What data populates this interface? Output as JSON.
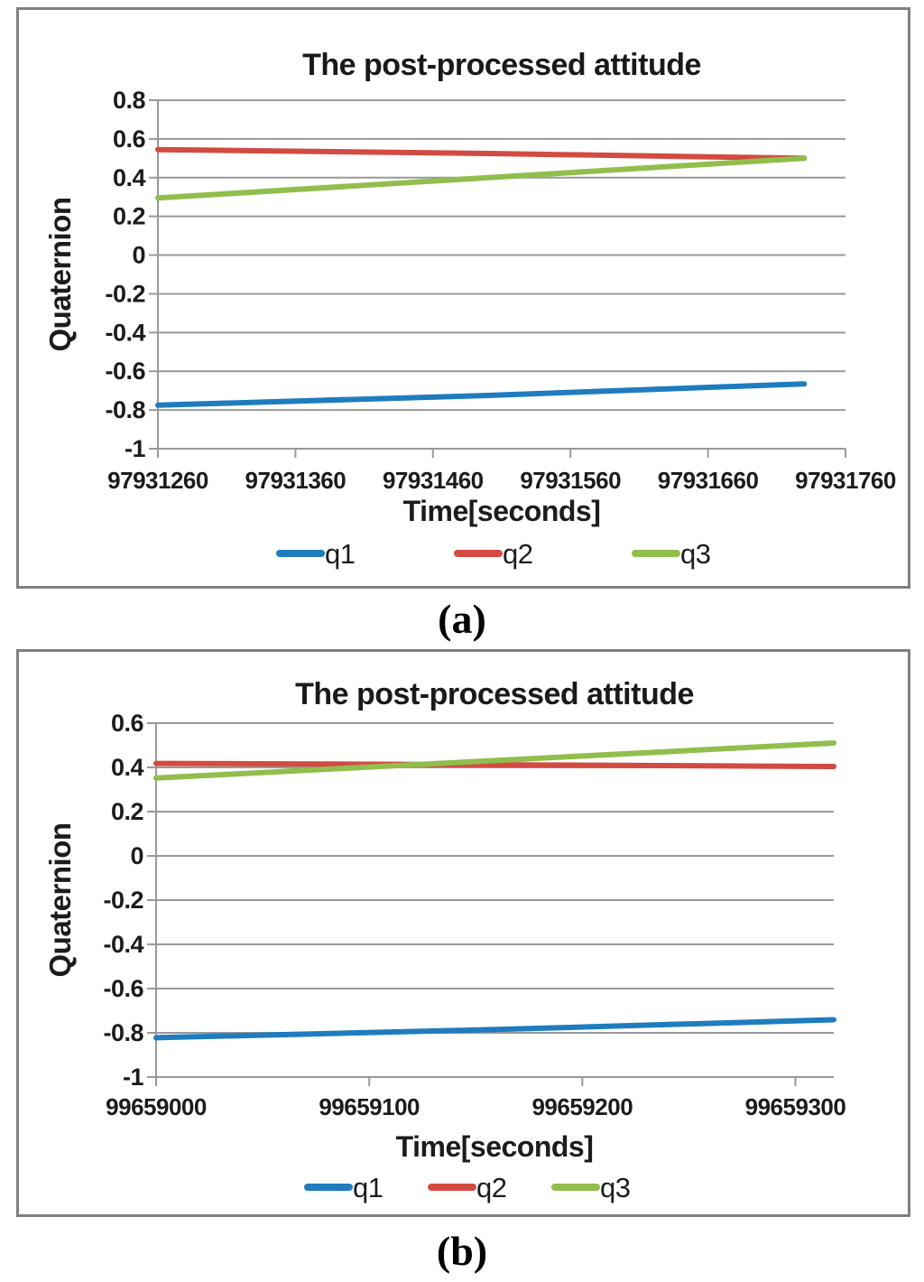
{
  "captions": {
    "a": "(a)",
    "b": "(b)"
  },
  "colors": {
    "q1": "#1F7CBE",
    "q2": "#D24B42",
    "q3": "#91BE4C",
    "grid": "#999999",
    "panel_border": "#7F7F7F",
    "text": "#1C1C1C"
  },
  "chart_data": [
    {
      "id": "a",
      "type": "line",
      "title": "The post-processed attitude",
      "xlabel": "Time[seconds]",
      "ylabel": "Quaternion",
      "xlim": [
        97931260,
        97931760
      ],
      "ylim": [
        -1,
        0.8
      ],
      "grid": "horizontal",
      "legend_position": "bottom",
      "xticks": [
        97931260,
        97931360,
        97931460,
        97931560,
        97931660,
        97931760
      ],
      "xtick_labels": [
        "97931260",
        "97931360",
        "97931460",
        "97931560",
        "97931660",
        "97931760"
      ],
      "yticks": [
        0.8,
        0.6,
        0.4,
        0.2,
        0,
        -0.2,
        -0.4,
        -0.6,
        -0.8,
        -1
      ],
      "ytick_labels": [
        "0.8",
        "0.6",
        "0.4",
        "0.2",
        "0",
        "-0.2",
        "-0.4",
        "-0.6",
        "-0.8",
        "-1"
      ],
      "series": [
        {
          "name": "q1",
          "color": "#1F7CBE",
          "points": [
            [
              97931260,
              -0.775
            ],
            [
              97931500,
              -0.725
            ],
            [
              97931730,
              -0.665
            ]
          ]
        },
        {
          "name": "q2",
          "color": "#D24B42",
          "points": [
            [
              97931260,
              0.545
            ],
            [
              97931500,
              0.525
            ],
            [
              97931730,
              0.5
            ]
          ]
        },
        {
          "name": "q3",
          "color": "#91BE4C",
          "points": [
            [
              97931260,
              0.295
            ],
            [
              97931500,
              0.4
            ],
            [
              97931730,
              0.5
            ]
          ]
        }
      ]
    },
    {
      "id": "b",
      "type": "line",
      "title": "The post-processed attitude",
      "xlabel": "Time[seconds]",
      "ylabel": "Quaternion",
      "xlim": [
        99659000,
        99659318
      ],
      "ylim": [
        -1,
        0.6
      ],
      "grid": "horizontal",
      "legend_position": "bottom",
      "xticks": [
        99659000,
        99659100,
        99659200,
        99659300
      ],
      "xtick_labels": [
        "99659000",
        "99659100",
        "99659200",
        "99659300"
      ],
      "yticks": [
        0.6,
        0.4,
        0.2,
        0,
        -0.2,
        -0.4,
        -0.6,
        -0.8,
        -1
      ],
      "ytick_labels": [
        "0.6",
        "0.4",
        "0.2",
        "0",
        "-0.2",
        "-0.4",
        "-0.6",
        "-0.8",
        "-1"
      ],
      "series": [
        {
          "name": "q1",
          "color": "#1F7CBE",
          "points": [
            [
              99659000,
              -0.822
            ],
            [
              99659160,
              -0.785
            ],
            [
              99659318,
              -0.741
            ]
          ]
        },
        {
          "name": "q2",
          "color": "#D24B42",
          "points": [
            [
              99659000,
              0.418
            ],
            [
              99659160,
              0.412
            ],
            [
              99659318,
              0.404
            ]
          ]
        },
        {
          "name": "q3",
          "color": "#91BE4C",
          "points": [
            [
              99659000,
              0.352
            ],
            [
              99659123,
              0.413
            ],
            [
              99659318,
              0.51
            ]
          ]
        }
      ]
    }
  ]
}
